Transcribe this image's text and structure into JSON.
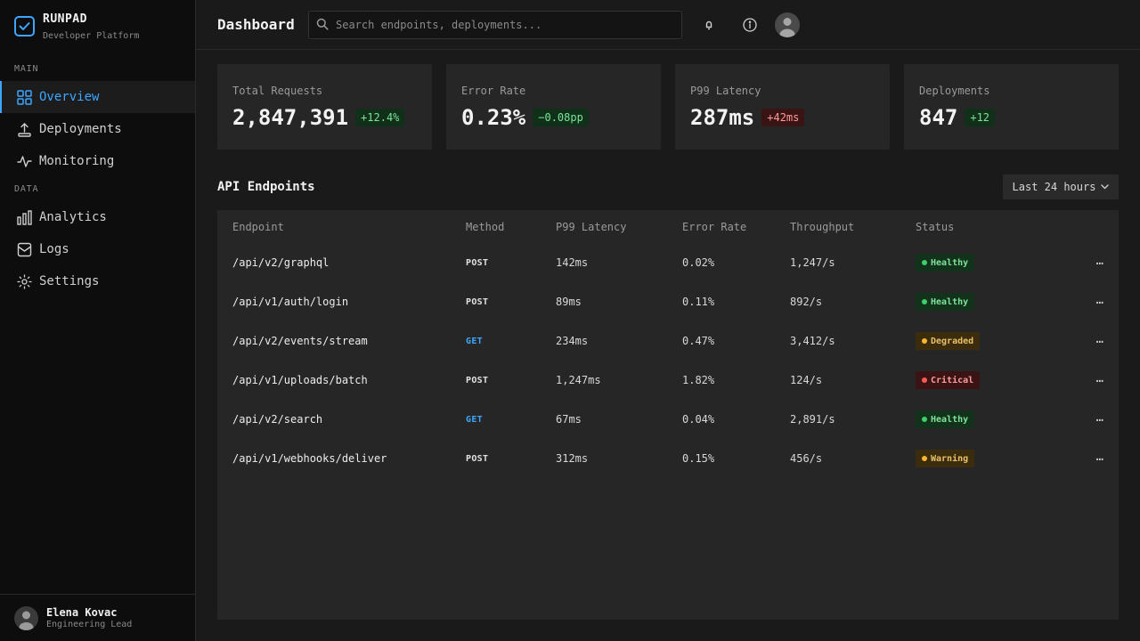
{
  "brand": {
    "name": "RUNPAD",
    "subtitle": "Developer Platform",
    "accent": "#3ea6ff"
  },
  "sidebar": {
    "sections": [
      {
        "label": "MAIN"
      },
      {
        "label": "DATA"
      }
    ],
    "items": [
      {
        "label": "Overview",
        "icon": "grid-icon",
        "active": true
      },
      {
        "label": "Deployments",
        "icon": "upload-icon"
      },
      {
        "label": "Monitoring",
        "icon": "activity-icon"
      },
      {
        "label": "Analytics",
        "icon": "bar-chart-icon"
      },
      {
        "label": "Logs",
        "icon": "inbox-icon"
      },
      {
        "label": "Settings",
        "icon": "gear-icon"
      }
    ],
    "user": {
      "name": "Elena Kovac",
      "role": "Engineering Lead"
    }
  },
  "header": {
    "title": "Dashboard",
    "search_placeholder": "Search endpoints, deployments...",
    "icons": [
      "bell-icon",
      "info-icon",
      "avatar"
    ]
  },
  "stats": [
    {
      "label": "Total Requests",
      "value": "2,847,391",
      "delta": "+12.4%",
      "trend": "good"
    },
    {
      "label": "Error Rate",
      "value": "0.23%",
      "delta": "−0.08pp",
      "trend": "good"
    },
    {
      "label": "P99 Latency",
      "value": "287ms",
      "delta": "+42ms",
      "trend": "bad"
    },
    {
      "label": "Deployments",
      "value": "847",
      "delta": "+12",
      "trend": "good"
    }
  ],
  "endpoints": {
    "title": "API Endpoints",
    "range": "Last 24 hours",
    "columns": [
      "Endpoint",
      "Method",
      "P99 Latency",
      "Error Rate",
      "Throughput",
      "Status"
    ],
    "rows": [
      {
        "endpoint": "/api/v2/graphql",
        "method": "POST",
        "latency": "142ms",
        "error_rate": "0.02%",
        "throughput": "1,247/s",
        "status": "Healthy"
      },
      {
        "endpoint": "/api/v1/auth/login",
        "method": "POST",
        "latency": "89ms",
        "error_rate": "0.11%",
        "throughput": "892/s",
        "status": "Healthy"
      },
      {
        "endpoint": "/api/v2/events/stream",
        "method": "GET",
        "latency": "234ms",
        "error_rate": "0.47%",
        "throughput": "3,412/s",
        "status": "Degraded"
      },
      {
        "endpoint": "/api/v1/uploads/batch",
        "method": "POST",
        "latency": "1,247ms",
        "error_rate": "1.82%",
        "throughput": "124/s",
        "status": "Critical"
      },
      {
        "endpoint": "/api/v2/search",
        "method": "GET",
        "latency": "67ms",
        "error_rate": "0.04%",
        "throughput": "2,891/s",
        "status": "Healthy"
      },
      {
        "endpoint": "/api/v1/webhooks/deliver",
        "method": "POST",
        "latency": "312ms",
        "error_rate": "0.15%",
        "throughput": "456/s",
        "status": "Warning"
      }
    ],
    "more_label": "…"
  },
  "colors": {
    "method_get": "#3ea6ff",
    "method_post": "#e0e0e0",
    "healthy_bg": "#12321c",
    "healthy_fg": "#7ee29a",
    "healthy_dot": "#3ecf6a",
    "degraded_bg": "#3a2c0c",
    "degraded_fg": "#e8c06a",
    "degraded_dot": "#f2b82e",
    "critical_bg": "#3a1414",
    "critical_fg": "#ff9b9b",
    "critical_dot": "#ff5a5a",
    "warning_bg": "#3a2c0c",
    "warning_fg": "#e8c06a",
    "warning_dot": "#f2b82e"
  }
}
